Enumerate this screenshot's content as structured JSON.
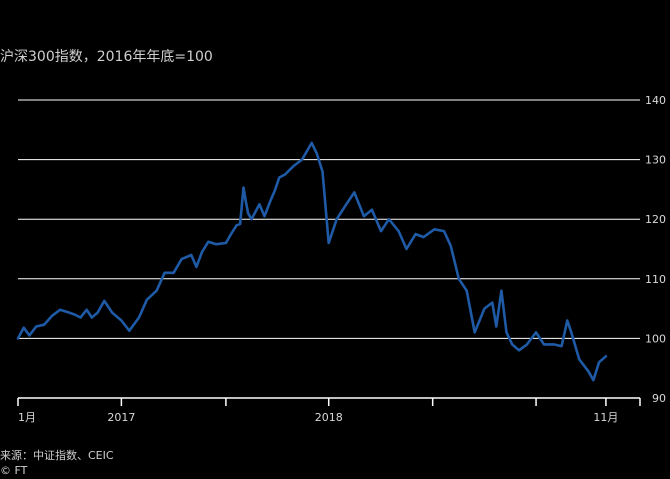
{
  "title": "沪深300指数，2016年年底=100",
  "source": {
    "text": "来源：中证指数、CEIC",
    "credit": "© FT"
  },
  "colors": {
    "line": "#1f5aa6",
    "grid": "#ffffff",
    "text": "#d9d9d9"
  },
  "chart_data": {
    "type": "line",
    "title": "沪深300指数，2016年年底=100",
    "xlabel": "",
    "ylabel": "",
    "ylim": [
      90,
      140
    ],
    "yticks": [
      90,
      100,
      110,
      120,
      130,
      140
    ],
    "grid": true,
    "x_tick_labels": [
      {
        "label": "1月",
        "x": "2016-12-31"
      },
      {
        "label": "2017",
        "x": "2017-07-01"
      },
      {
        "label": "",
        "x": "2018-01-01"
      },
      {
        "label": "2018",
        "x": "2018-07-01"
      },
      {
        "label": "11月",
        "x": "2019-11-01"
      }
    ],
    "x_ticks": [
      "2016-12-31",
      "2017-07-01",
      "2018-01-01",
      "2018-07-01",
      "2018-12-31",
      "2019-07-01",
      "2019-11-01",
      "2019-12-31"
    ],
    "series": [
      {
        "x": [
          "2016-12-31",
          "2017-01-10",
          "2017-01-20",
          "2017-02-01",
          "2017-02-15",
          "2017-03-01",
          "2017-03-15",
          "2017-04-01",
          "2017-04-10",
          "2017-04-20",
          "2017-05-01",
          "2017-05-10",
          "2017-05-20",
          "2017-06-01",
          "2017-06-15",
          "2017-07-01",
          "2017-07-15",
          "2017-08-01",
          "2017-08-15",
          "2017-09-01",
          "2017-09-15",
          "2017-10-01",
          "2017-10-15",
          "2017-11-01",
          "2017-11-10",
          "2017-11-20",
          "2017-12-01",
          "2017-12-15",
          "2018-01-01",
          "2018-01-10",
          "2018-01-20",
          "2018-01-26",
          "2018-02-01",
          "2018-02-05",
          "2018-02-09",
          "2018-02-15",
          "2018-03-01",
          "2018-03-10",
          "2018-03-20",
          "2018-03-28",
          "2018-04-05",
          "2018-04-15",
          "2018-05-01",
          "2018-05-15",
          "2018-06-01",
          "2018-06-10",
          "2018-06-20",
          "2018-07-01",
          "2018-07-15",
          "2018-08-01",
          "2018-08-15",
          "2018-09-01",
          "2018-09-15",
          "2018-10-01",
          "2018-10-15",
          "2018-11-01",
          "2018-11-15",
          "2018-12-01",
          "2018-12-15",
          "2019-01-03",
          "2019-01-20",
          "2019-02-01",
          "2019-02-15",
          "2019-03-01",
          "2019-03-15",
          "2019-04-01",
          "2019-04-15",
          "2019-04-22",
          "2019-05-01",
          "2019-05-10",
          "2019-05-20",
          "2019-06-01",
          "2019-06-15",
          "2019-07-01",
          "2019-07-15",
          "2019-08-01",
          "2019-08-15",
          "2019-08-25",
          "2019-09-01",
          "2019-09-15",
          "2019-10-01",
          "2019-10-10",
          "2019-10-20",
          "2019-11-01"
        ],
        "values": [
          100,
          101.8,
          100.5,
          102,
          102.3,
          103.8,
          104.8,
          104.3,
          104,
          103.5,
          104.8,
          103.5,
          104.3,
          106.3,
          104.3,
          103,
          101.3,
          103.5,
          106.5,
          108,
          111,
          111,
          113.3,
          114,
          112,
          114.5,
          116.2,
          115.8,
          116,
          117.5,
          119,
          119.2,
          125.3,
          123,
          121,
          120,
          122.5,
          120.5,
          123,
          124.8,
          127,
          127.5,
          129,
          130,
          132.8,
          131,
          128,
          116,
          120,
          122.5,
          124.5,
          120.5,
          121.6,
          118,
          120,
          118,
          115,
          117.5,
          117,
          118.3,
          118,
          115.5,
          110,
          108,
          101,
          105,
          106,
          102,
          108,
          101,
          99,
          98,
          99,
          101,
          99,
          99,
          98.7,
          103,
          101,
          96.5,
          94.5,
          93,
          96,
          97
        ]
      }
    ]
  }
}
